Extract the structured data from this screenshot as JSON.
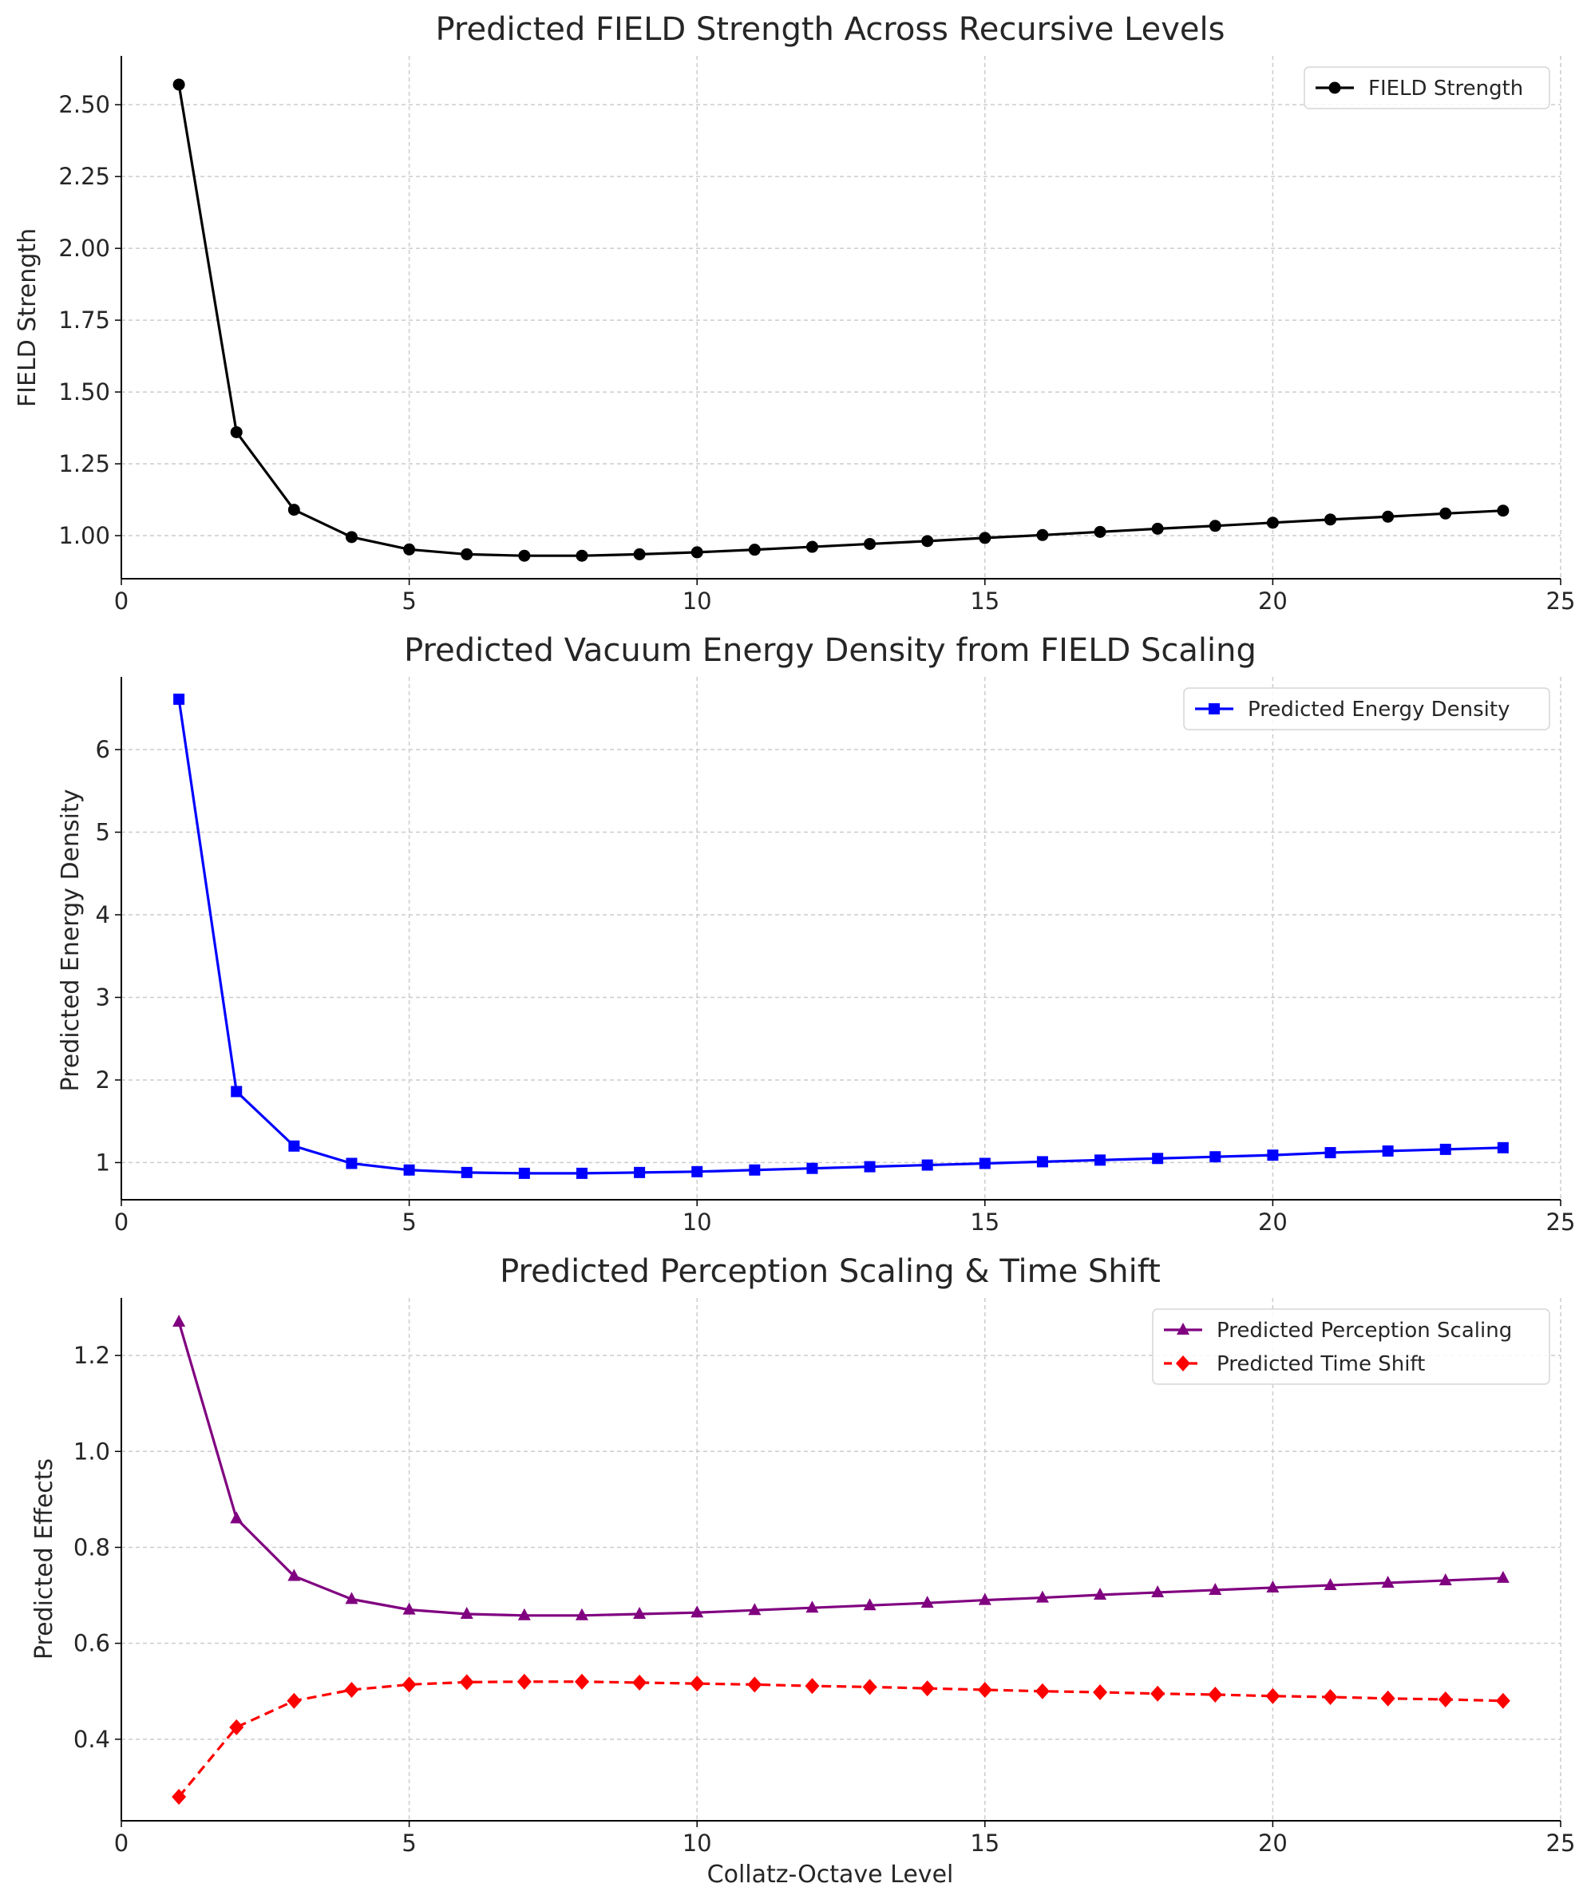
{
  "chart_data": [
    {
      "type": "line",
      "title": "Predicted FIELD Strength Across Recursive Levels",
      "xlabel": "",
      "ylabel": "FIELD Strength",
      "xlim": [
        0,
        25
      ],
      "ylim": [
        0.85,
        2.67
      ],
      "xticks": [
        0,
        5,
        10,
        15,
        20,
        25
      ],
      "xtick_labels": [
        "0",
        "5",
        "10",
        "15",
        "20",
        "25"
      ],
      "yticks": [
        1.0,
        1.25,
        1.5,
        1.75,
        2.0,
        2.25,
        2.5
      ],
      "ytick_labels": [
        "1.00",
        "1.25",
        "1.50",
        "1.75",
        "2.00",
        "2.25",
        "2.50"
      ],
      "grid": true,
      "legend_position": "top-right",
      "x": [
        1,
        2,
        3,
        4,
        5,
        6,
        7,
        8,
        9,
        10,
        11,
        12,
        13,
        14,
        15,
        16,
        17,
        18,
        19,
        20,
        21,
        22,
        23,
        24
      ],
      "series": [
        {
          "name": "FIELD Strength",
          "color": "#000000",
          "marker": "circle",
          "linestyle": "solid",
          "values": [
            2.57,
            1.36,
            1.09,
            0.995,
            0.952,
            0.935,
            0.93,
            0.93,
            0.935,
            0.942,
            0.951,
            0.961,
            0.971,
            0.981,
            0.992,
            1.002,
            1.013,
            1.024,
            1.034,
            1.045,
            1.056,
            1.066,
            1.077,
            1.087
          ]
        }
      ]
    },
    {
      "type": "line",
      "title": "Predicted Vacuum Energy Density from FIELD Scaling",
      "xlabel": "",
      "ylabel": "Predicted Energy Density",
      "xlim": [
        0,
        25
      ],
      "ylim": [
        0.55,
        6.88
      ],
      "xticks": [
        0,
        5,
        10,
        15,
        20,
        25
      ],
      "xtick_labels": [
        "0",
        "5",
        "10",
        "15",
        "20",
        "25"
      ],
      "yticks": [
        1,
        2,
        3,
        4,
        5,
        6
      ],
      "ytick_labels": [
        "1",
        "2",
        "3",
        "4",
        "5",
        "6"
      ],
      "grid": true,
      "legend_position": "top-right",
      "x": [
        1,
        2,
        3,
        4,
        5,
        6,
        7,
        8,
        9,
        10,
        11,
        12,
        13,
        14,
        15,
        16,
        17,
        18,
        19,
        20,
        21,
        22,
        23,
        24
      ],
      "series": [
        {
          "name": "Predicted Energy Density",
          "color": "#0000ff",
          "marker": "square",
          "linestyle": "solid",
          "values": [
            6.61,
            1.86,
            1.2,
            0.99,
            0.91,
            0.88,
            0.87,
            0.87,
            0.88,
            0.89,
            0.91,
            0.93,
            0.95,
            0.97,
            0.99,
            1.01,
            1.03,
            1.05,
            1.07,
            1.09,
            1.12,
            1.14,
            1.16,
            1.18
          ]
        }
      ]
    },
    {
      "type": "line",
      "title": "Predicted Perception Scaling & Time Shift",
      "xlabel": "Collatz-Octave Level",
      "ylabel": "Predicted Effects",
      "xlim": [
        0,
        25
      ],
      "ylim": [
        0.23,
        1.32
      ],
      "xticks": [
        0,
        5,
        10,
        15,
        20,
        25
      ],
      "xtick_labels": [
        "0",
        "5",
        "10",
        "15",
        "20",
        "25"
      ],
      "yticks": [
        0.4,
        0.6,
        0.8,
        1.0,
        1.2
      ],
      "ytick_labels": [
        "0.4",
        "0.6",
        "0.8",
        "1.0",
        "1.2"
      ],
      "grid": true,
      "legend_position": "top-right",
      "x": [
        1,
        2,
        3,
        4,
        5,
        6,
        7,
        8,
        9,
        10,
        11,
        12,
        13,
        14,
        15,
        16,
        17,
        18,
        19,
        20,
        21,
        22,
        23,
        24
      ],
      "series": [
        {
          "name": "Predicted Perception Scaling",
          "color": "#800080",
          "marker": "triangle",
          "linestyle": "solid",
          "values": [
            1.27,
            0.86,
            0.74,
            0.692,
            0.67,
            0.661,
            0.658,
            0.658,
            0.661,
            0.664,
            0.669,
            0.674,
            0.679,
            0.684,
            0.69,
            0.695,
            0.701,
            0.706,
            0.711,
            0.716,
            0.721,
            0.726,
            0.731,
            0.736
          ]
        },
        {
          "name": "Predicted Time Shift",
          "color": "#ff0000",
          "marker": "diamond",
          "linestyle": "dashed",
          "values": [
            0.28,
            0.425,
            0.48,
            0.503,
            0.514,
            0.519,
            0.52,
            0.52,
            0.518,
            0.516,
            0.514,
            0.511,
            0.509,
            0.506,
            0.503,
            0.5,
            0.498,
            0.495,
            0.493,
            0.49,
            0.488,
            0.485,
            0.483,
            0.48
          ]
        }
      ]
    }
  ]
}
